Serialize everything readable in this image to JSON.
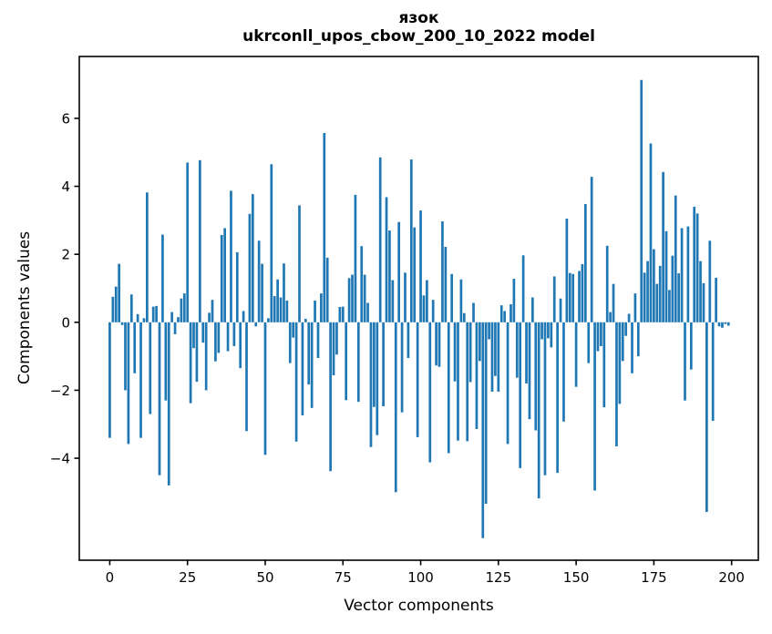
{
  "chart_data": {
    "type": "bar",
    "title": "язок",
    "subtitle": "ukrconll_upos_cbow_200_10_2022 model",
    "xlabel": "Vector components",
    "ylabel": "Components values",
    "bar_color": "#1f77b4",
    "axis_color": "#000000",
    "n_components": 200,
    "x_start": 0,
    "x_step": 1,
    "xlim": [
      -9.8,
      208.6
    ],
    "ylim": [
      -7.0,
      7.82
    ],
    "xticks": [
      0,
      25,
      50,
      75,
      100,
      125,
      150,
      175,
      200
    ],
    "xtick_labels": [
      "0",
      "25",
      "50",
      "75",
      "100",
      "125",
      "150",
      "175",
      "200"
    ],
    "yticks": [
      -4,
      -2,
      0,
      2,
      4,
      6
    ],
    "ytick_labels": [
      "−4",
      "−2",
      "0",
      "2",
      "4",
      "6"
    ],
    "legend": null,
    "grid": false,
    "values": [
      -3.4,
      0.75,
      1.05,
      1.72,
      -0.08,
      -2.0,
      -3.58,
      0.82,
      -1.5,
      0.24,
      -3.4,
      0.12,
      3.82,
      -2.7,
      0.46,
      0.48,
      -4.5,
      2.58,
      -2.3,
      -4.8,
      0.3,
      -0.35,
      0.15,
      0.7,
      0.85,
      4.7,
      -2.38,
      -0.76,
      -1.75,
      4.77,
      -0.6,
      -2.0,
      0.28,
      0.66,
      -1.15,
      -0.9,
      2.57,
      2.77,
      -0.85,
      3.87,
      -0.7,
      2.06,
      -1.35,
      0.33,
      -3.2,
      3.19,
      3.77,
      -0.12,
      2.4,
      1.72,
      -3.9,
      0.12,
      4.65,
      0.77,
      1.26,
      0.73,
      1.73,
      0.64,
      -1.2,
      -0.45,
      -3.51,
      3.44,
      -2.74,
      0.1,
      -1.83,
      -2.52,
      0.64,
      -1.05,
      0.85,
      5.57,
      1.9,
      -4.38,
      -1.56,
      -0.95,
      0.45,
      0.46,
      -2.29,
      1.3,
      1.4,
      3.75,
      -2.34,
      2.24,
      1.4,
      0.57,
      -3.67,
      -2.49,
      -3.32,
      4.85,
      -2.47,
      3.68,
      2.7,
      1.24,
      -5.0,
      2.95,
      -2.65,
      1.46,
      -1.05,
      4.79,
      2.79,
      -3.38,
      3.29,
      0.79,
      1.24,
      -4.12,
      0.66,
      -1.27,
      -1.31,
      2.97,
      2.22,
      -3.85,
      1.42,
      -1.74,
      -3.48,
      1.26,
      0.27,
      -3.5,
      -1.76,
      0.57,
      -3.14,
      -1.14,
      -6.35,
      -5.34,
      -0.5,
      -2.04,
      -1.58,
      -2.04,
      0.5,
      0.33,
      -3.58,
      0.53,
      1.28,
      -1.63,
      -4.29,
      1.97,
      -1.8,
      -2.85,
      0.73,
      -3.18,
      -5.18,
      -0.5,
      -4.5,
      -0.47,
      -0.74,
      1.35,
      -4.43,
      0.7,
      -2.92,
      3.05,
      1.45,
      1.42,
      -1.9,
      1.51,
      1.71,
      3.48,
      -1.2,
      4.28,
      -4.95,
      -0.85,
      -0.7,
      -2.5,
      2.25,
      0.3,
      1.13,
      -3.65,
      -2.4,
      -1.14,
      -0.4,
      0.25,
      -1.5,
      0.85,
      -1.0,
      7.13,
      1.46,
      1.8,
      5.26,
      2.15,
      1.13,
      1.66,
      4.42,
      2.68,
      0.95,
      1.96,
      3.73,
      1.44,
      2.77,
      -2.3,
      2.82,
      -1.39,
      3.4,
      3.2,
      1.8,
      1.15,
      -5.58,
      2.4,
      -2.9,
      1.31,
      -0.12,
      -0.16,
      -0.05,
      -0.1
    ]
  }
}
